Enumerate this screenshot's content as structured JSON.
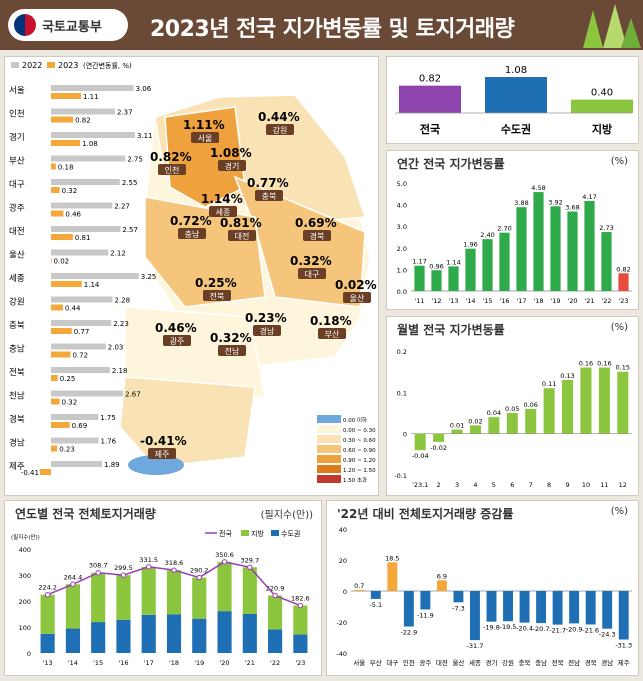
{
  "header": {
    "org": "국토교통부",
    "title": "2023년 전국 지가변동률 및 토지거래량"
  },
  "left_bars": {
    "legend": [
      "2022",
      "2023",
      "(연간변동률, %)"
    ],
    "colors": {
      "y2022": "#c8c8c8",
      "y2023": "#f4a83a"
    }
  },
  "region_map": {
    "labels": [
      {
        "name": "서울",
        "value": "1.11",
        "unit": "%"
      },
      {
        "name": "강원",
        "value": "0.44",
        "unit": "%"
      },
      {
        "name": "인천",
        "value": "0.82",
        "unit": "%"
      },
      {
        "name": "경기",
        "value": "1.08",
        "unit": "%"
      },
      {
        "name": "충북",
        "value": "0.77",
        "unit": "%"
      },
      {
        "name": "세종",
        "value": "1.14",
        "unit": "%"
      },
      {
        "name": "충남",
        "value": "0.72",
        "unit": "%"
      },
      {
        "name": "대전",
        "value": "0.81",
        "unit": "%"
      },
      {
        "name": "경북",
        "value": "0.69",
        "unit": "%"
      },
      {
        "name": "대구",
        "value": "0.32",
        "unit": "%"
      },
      {
        "name": "울산",
        "value": "0.02",
        "unit": "%"
      },
      {
        "name": "전북",
        "value": "0.25",
        "unit": "%"
      },
      {
        "name": "경남",
        "value": "0.23",
        "unit": "%"
      },
      {
        "name": "부산",
        "value": "0.18",
        "unit": "%"
      },
      {
        "name": "광주",
        "value": "0.46",
        "unit": "%"
      },
      {
        "name": "전남",
        "value": "0.32",
        "unit": "%"
      },
      {
        "name": "제주",
        "value": "-0.41",
        "unit": "%"
      }
    ],
    "legend": [
      {
        "label": "0.00 이하",
        "color": "#6fa8dc"
      },
      {
        "label": "0.00 ~ 0.30",
        "color": "#fdf6dc"
      },
      {
        "label": "0.30 ~ 0.60",
        "color": "#f9e3b4"
      },
      {
        "label": "0.60 ~ 0.90",
        "color": "#f4c57a"
      },
      {
        "label": "0.90 ~ 1.20",
        "color": "#eea13c"
      },
      {
        "label": "1.20 ~ 1.50",
        "color": "#e07b1a"
      },
      {
        "label": "1.50 초과",
        "color": "#c0392b"
      }
    ]
  },
  "top_summary": {
    "items": [
      {
        "label": "전국",
        "value": "0.82",
        "color": "#8e44ad"
      },
      {
        "label": "수도권",
        "value": "1.08",
        "color": "#1f6fb5"
      },
      {
        "label": "지방",
        "value": "0.40",
        "color": "#8cc63f"
      }
    ]
  },
  "annual_panel": {
    "title": "연간 전국 지가변동률",
    "unit": "(%)"
  },
  "monthly_panel": {
    "title": "월별 전국 지가변동률",
    "unit": "(%)"
  },
  "trade_panel": {
    "title": "연도별 전국 전체토지거래량",
    "unit": "(필지수(만))",
    "axis_unit": "(필지수(만))",
    "legend": [
      "전국",
      "지방",
      "수도권"
    ]
  },
  "change_panel": {
    "title": "'22년 대비 전체토지거래량 증감률",
    "unit": "(%)"
  },
  "chart_data": [
    {
      "type": "bar",
      "title": "",
      "categories": [
        "서울",
        "인천",
        "경기",
        "부산",
        "대구",
        "광주",
        "대전",
        "울산",
        "세종",
        "강원",
        "충북",
        "충남",
        "전북",
        "전남",
        "경북",
        "경남",
        "제주"
      ],
      "series": [
        {
          "name": "2022",
          "values": [
            3.06,
            2.37,
            3.11,
            2.75,
            2.55,
            2.27,
            2.57,
            2.12,
            3.25,
            2.28,
            2.23,
            2.03,
            2.18,
            2.67,
            1.75,
            1.76,
            1.89
          ]
        },
        {
          "name": "2023",
          "values": [
            1.11,
            0.82,
            1.08,
            0.18,
            0.32,
            0.46,
            0.81,
            0.02,
            1.14,
            0.44,
            0.77,
            0.72,
            0.25,
            0.32,
            0.69,
            0.23,
            -0.41
          ]
        }
      ]
    },
    {
      "type": "bar",
      "title": "",
      "categories": [
        "전국",
        "수도권",
        "지방"
      ],
      "values": [
        0.82,
        1.08,
        0.4
      ]
    },
    {
      "type": "bar",
      "title": "연간 전국 지가변동률",
      "categories": [
        "'11",
        "'12",
        "'13",
        "'14",
        "'15",
        "'16",
        "'17",
        "'18",
        "'19",
        "'20",
        "'21",
        "'22",
        "'23"
      ],
      "values": [
        1.17,
        0.96,
        1.14,
        1.96,
        2.4,
        2.7,
        3.88,
        4.58,
        3.92,
        3.68,
        4.17,
        2.73,
        0.82
      ],
      "ylim": [
        0,
        5.0
      ],
      "yticks": [
        "0.0",
        "1.0",
        "2.0",
        "3.0",
        "4.0",
        "5.0"
      ]
    },
    {
      "type": "bar",
      "title": "월별 전국 지가변동률",
      "categories": [
        "'23.1",
        "2",
        "3",
        "4",
        "5",
        "6",
        "7",
        "8",
        "9",
        "10",
        "11",
        "12"
      ],
      "values": [
        -0.04,
        -0.02,
        0.01,
        0.02,
        0.04,
        0.05,
        0.06,
        0.11,
        0.13,
        0.16,
        0.16,
        0.15
      ],
      "ylim": [
        -0.1,
        0.2
      ],
      "yticks": [
        "-0.1",
        "0",
        "0.1",
        "0.2"
      ]
    },
    {
      "type": "bar",
      "title": "연도별 전국 전체토지거래량",
      "categories": [
        "'13",
        "'14",
        "'15",
        "'16",
        "'17",
        "'18",
        "'19",
        "'20",
        "'21",
        "'22",
        "'23"
      ],
      "series": [
        {
          "name": "전국",
          "values": [
            224.2,
            264.4,
            308.7,
            299.5,
            331.5,
            318.6,
            290.2,
            350.6,
            329.7,
            220.9,
            182.6
          ]
        },
        {
          "name": "지방",
          "values": [
            150,
            170,
            190,
            172,
            185,
            170,
            158,
            190,
            180,
            130,
            112
          ]
        },
        {
          "name": "수도권",
          "values": [
            74,
            94,
            119,
            128,
            147,
            149,
            132,
            161,
            150,
            91,
            71
          ]
        }
      ],
      "ylim": [
        0,
        400
      ],
      "yticks": [
        "0",
        "100",
        "200",
        "300",
        "400"
      ]
    },
    {
      "type": "bar",
      "title": "'22년 대비 전체토지거래량 증감률",
      "categories": [
        "서울",
        "부산",
        "대구",
        "인천",
        "광주",
        "대전",
        "울산",
        "세종",
        "경기",
        "강원",
        "충북",
        "충남",
        "전북",
        "전남",
        "경북",
        "경남",
        "제주"
      ],
      "values": [
        0.7,
        -5.1,
        18.5,
        -22.9,
        -11.9,
        6.9,
        -7.3,
        -31.7,
        -19.8,
        -19.5,
        -20.4,
        -20.7,
        -21.7,
        -20.9,
        -21.6,
        -24.3,
        -31.3
      ],
      "ylim": [
        -40,
        40
      ],
      "yticks": [
        "-40",
        "-20",
        "0",
        "20",
        "40"
      ]
    }
  ]
}
